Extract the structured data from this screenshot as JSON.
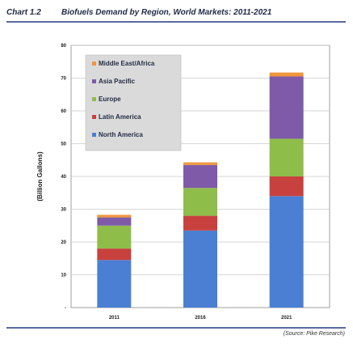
{
  "header": {
    "chart_number": "Chart 1.2",
    "title": "Biofuels Demand by Region, World Markets: 2011-2021"
  },
  "source": "(Source: Pike Research)",
  "chart_data": {
    "type": "bar",
    "stacked": true,
    "title": "Biofuels Demand by Region, World Markets: 2011-2021",
    "xlabel": "",
    "ylabel": "(Billion Gallons)",
    "ylim": [
      0,
      80
    ],
    "yticks": [
      0,
      10,
      20,
      30,
      40,
      50,
      60,
      70,
      80
    ],
    "ytick_labels": [
      "-",
      "10",
      "20",
      "30",
      "40",
      "50",
      "60",
      "70",
      "80"
    ],
    "categories": [
      "2011",
      "2016",
      "2021"
    ],
    "grid": true,
    "legend_position": "top-left",
    "series": [
      {
        "name": "North America",
        "color": "#4a7fd4",
        "values": [
          14.5,
          23.5,
          34
        ]
      },
      {
        "name": "Latin America",
        "color": "#c8413f",
        "values": [
          3.5,
          4.5,
          6
        ]
      },
      {
        "name": "Europe",
        "color": "#8fbd4a",
        "values": [
          7,
          8.5,
          11.5
        ]
      },
      {
        "name": "Asia Pacific",
        "color": "#7e5aa8",
        "values": [
          2.5,
          7,
          19
        ]
      },
      {
        "name": "Middle East/Africa",
        "color": "#f0963c",
        "values": [
          0.8,
          0.8,
          1.2
        ]
      }
    ]
  }
}
